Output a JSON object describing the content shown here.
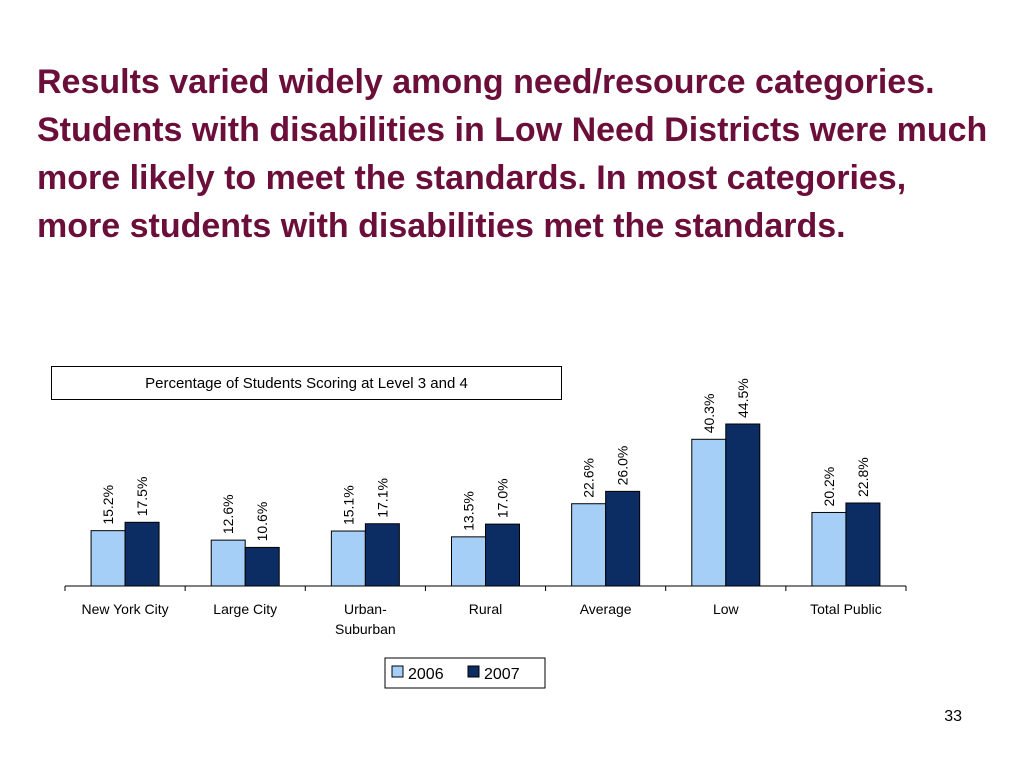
{
  "slide": {
    "title": "Results varied widely among need/resource categories.  Students with disabilities in Low Need Districts were much more likely to meet the standards. In most categories, more students with disabilities met the standards.",
    "page_number": "33"
  },
  "colors": {
    "title": "#6b0f3a",
    "series_2006": "#a6cff7",
    "series_2007": "#0c2d64"
  },
  "chart_data": {
    "type": "bar",
    "title": "Percentage of Students Scoring at Level 3 and 4",
    "categories": [
      [
        "New York City"
      ],
      [
        "Large City"
      ],
      [
        "Urban-",
        "Suburban"
      ],
      [
        "Rural"
      ],
      [
        "Average"
      ],
      [
        "Low"
      ],
      [
        "Total Public"
      ]
    ],
    "series": [
      {
        "name": "2006",
        "values": [
          15.2,
          12.6,
          15.1,
          13.5,
          22.6,
          40.3,
          20.2
        ],
        "labels": [
          "15.2%",
          "12.6%",
          "15.1%",
          "13.5%",
          "22.6%",
          "40.3%",
          "20.2%"
        ]
      },
      {
        "name": "2007",
        "values": [
          17.5,
          10.6,
          17.1,
          17.0,
          26.0,
          44.5,
          22.8
        ],
        "labels": [
          "17.5%",
          "10.6%",
          "17.1%",
          "17.0%",
          "26.0%",
          "44.5%",
          "22.8%"
        ]
      }
    ],
    "ylim": [
      0,
      44.5
    ],
    "legend_position": "bottom",
    "grid": false
  }
}
